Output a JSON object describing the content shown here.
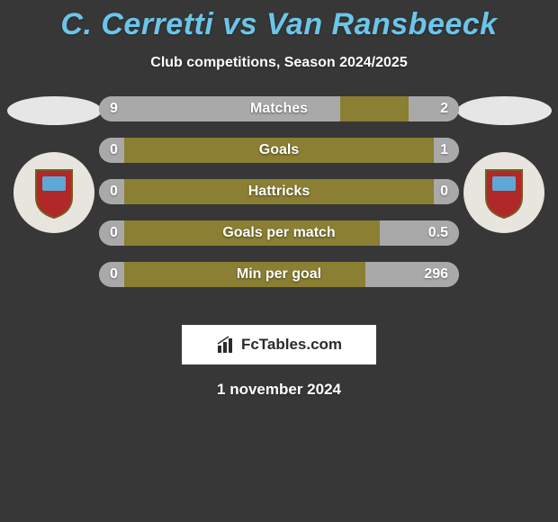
{
  "background_color": "#373737",
  "title": {
    "text": "C. Cerretti vs Van Ransbeeck",
    "color": "#6cc5e8",
    "fontsize": 34
  },
  "subtitle": {
    "text": "Club competitions, Season 2024/2025",
    "color": "#ffffff",
    "fontsize": 16
  },
  "player_left": {
    "ellipse_color": "#e6e6e6",
    "crest_bg": "#e8e5df",
    "shield_color": "#b02828",
    "shield_top": "#5fa8d6"
  },
  "player_right": {
    "ellipse_color": "#e6e6e6",
    "crest_bg": "#e8e5df",
    "shield_color": "#b02828",
    "shield_top": "#5fa8d6"
  },
  "bars": {
    "track_color": "#8a7f33",
    "left_fill_color": "#a9a9a9",
    "right_fill_color": "#a9a9a9",
    "value_color": "#ffffff",
    "label_color": "#ffffff",
    "rows": [
      {
        "label": "Matches",
        "left_val": "9",
        "right_val": "2",
        "left_pct": 67,
        "right_pct": 14
      },
      {
        "label": "Goals",
        "left_val": "0",
        "right_val": "1",
        "left_pct": 7,
        "right_pct": 7
      },
      {
        "label": "Hattricks",
        "left_val": "0",
        "right_val": "0",
        "left_pct": 7,
        "right_pct": 7
      },
      {
        "label": "Goals per match",
        "left_val": "0",
        "right_val": "0.5",
        "left_pct": 7,
        "right_pct": 22
      },
      {
        "label": "Min per goal",
        "left_val": "0",
        "right_val": "296",
        "left_pct": 7,
        "right_pct": 26
      }
    ]
  },
  "logo": {
    "bg": "#ffffff",
    "text": "FcTables.com",
    "text_color": "#2b2b2b",
    "icon_color": "#2b2b2b"
  },
  "date": {
    "text": "1 november 2024",
    "color": "#ffffff"
  }
}
